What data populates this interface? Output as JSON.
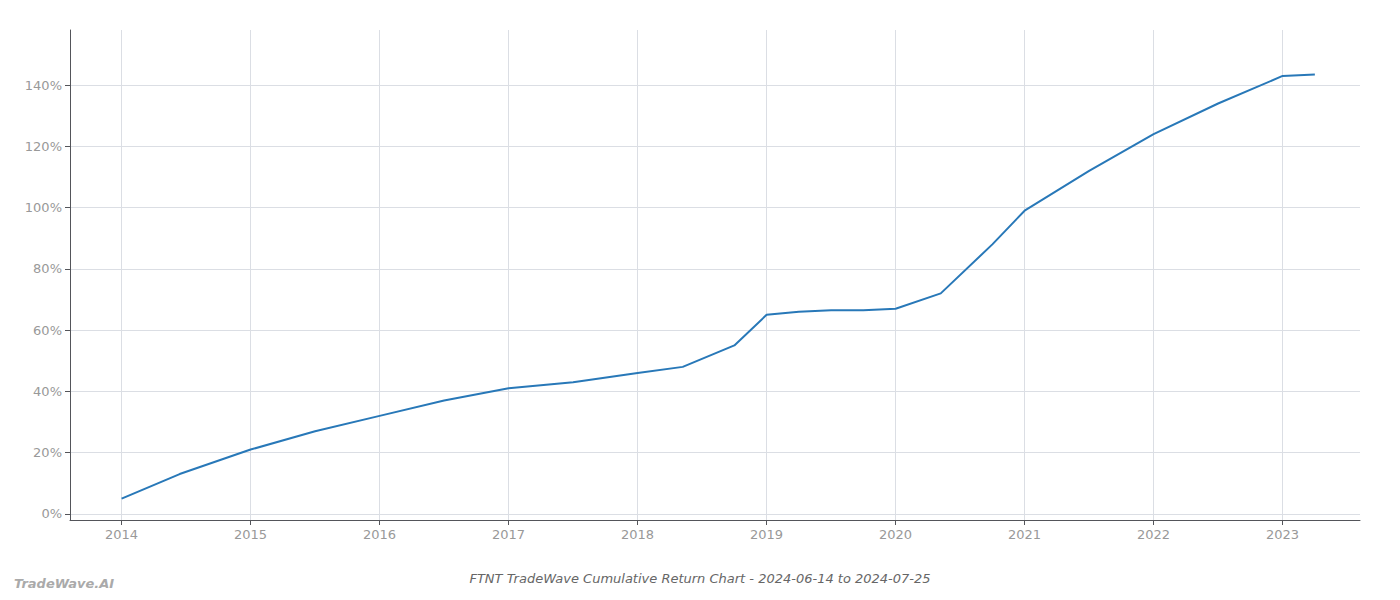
{
  "chart_data": {
    "type": "line",
    "title": "FTNT TradeWave Cumulative Return Chart - 2024-06-14 to 2024-07-25",
    "annotations": [
      "TradeWave.AI"
    ],
    "x": [
      2014,
      2014.45,
      2015,
      2015.5,
      2016,
      2016.5,
      2017,
      2017.5,
      2018,
      2018.35,
      2018.75,
      2019,
      2019.25,
      2019.5,
      2019.75,
      2020,
      2020.35,
      2020.75,
      2021,
      2021.5,
      2022,
      2022.5,
      2023,
      2023.25
    ],
    "values": [
      0.05,
      0.13,
      0.21,
      0.27,
      0.32,
      0.37,
      0.41,
      0.43,
      0.46,
      0.48,
      0.55,
      0.65,
      0.66,
      0.665,
      0.665,
      0.67,
      0.72,
      0.88,
      0.99,
      1.12,
      1.24,
      1.34,
      1.43,
      1.435
    ],
    "color": "#2878b8",
    "xlim": [
      2013.6,
      2023.6
    ],
    "ylim": [
      -0.02,
      1.58
    ],
    "xticks": [
      2014,
      2015,
      2016,
      2017,
      2018,
      2019,
      2020,
      2021,
      2022,
      2023
    ],
    "yticks": [
      {
        "value": 0.0,
        "label": "0%"
      },
      {
        "value": 0.2,
        "label": "20%"
      },
      {
        "value": 0.4,
        "label": "40%"
      },
      {
        "value": 0.6,
        "label": "60%"
      },
      {
        "value": 0.8,
        "label": "80%"
      },
      {
        "value": 1.0,
        "label": "100%"
      },
      {
        "value": 1.2,
        "label": "120%"
      },
      {
        "value": 1.4,
        "label": "140%"
      }
    ],
    "grid": true
  }
}
